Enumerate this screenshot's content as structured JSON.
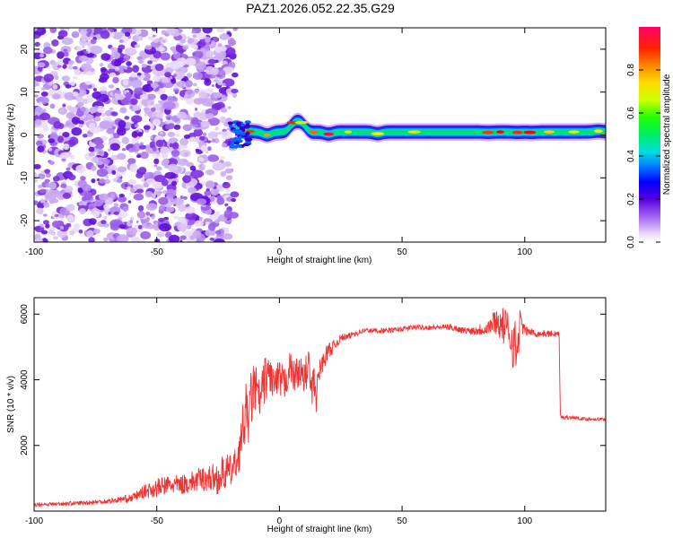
{
  "figure_title": "PAZ1.2026.052.22.35.G29",
  "chart_data": [
    {
      "type": "heatmap",
      "title": "PAZ1.2026.052.22.35.G29",
      "xlabel": "Height of straight line (km)",
      "ylabel": "Frequency (Hz)",
      "xlim": [
        -100,
        133
      ],
      "ylim": [
        -25,
        25
      ],
      "xticks": [
        -100,
        -50,
        0,
        50,
        100
      ],
      "yticks": [
        -20,
        -10,
        0,
        10,
        20
      ],
      "description_values": {
        "noise_region_x": [
          -100,
          -18
        ],
        "signal_center_hz": 0.7,
        "signal_bumps": [
          {
            "x": -17,
            "f": 1.5
          },
          {
            "x": -12,
            "f": 0.8
          },
          {
            "x": -5,
            "f": 0.0
          },
          {
            "x": 6,
            "f": 2.5
          },
          {
            "x": 9,
            "f": 2.5
          },
          {
            "x": 13,
            "f": 0.6
          },
          {
            "x": 20,
            "f": 0.2
          },
          {
            "x": 40,
            "f": 0.3
          },
          {
            "x": 85,
            "f": 0.6
          },
          {
            "x": 97,
            "f": 0.6
          },
          {
            "x": 103,
            "f": 0.6
          },
          {
            "x": 130,
            "f": 0.9
          }
        ]
      },
      "colorbar": {
        "label": "Normalized spectral amplitude",
        "range": [
          0,
          1
        ],
        "ticks": [
          0.0,
          0.2,
          0.4,
          0.6,
          0.8
        ],
        "tick_labels": [
          "0.0",
          "0.2",
          "0.4",
          "0.6",
          "0.8"
        ]
      }
    },
    {
      "type": "line",
      "title": "",
      "xlabel": "Height of straight line (km)",
      "ylabel": "SNR (10 * v/v)",
      "xlim": [
        -100,
        133
      ],
      "ylim": [
        0,
        6500
      ],
      "xticks": [
        -100,
        -50,
        0,
        50,
        100
      ],
      "yticks": [
        2000,
        4000,
        6000
      ],
      "color": "#ee3333",
      "series": [
        {
          "name": "SNR",
          "x": [
            -100,
            -90,
            -80,
            -70,
            -60,
            -55,
            -50,
            -45,
            -40,
            -35,
            -30,
            -25,
            -22,
            -20,
            -18,
            -16,
            -15,
            -14,
            -13,
            -12,
            -11,
            -10,
            -8,
            -6,
            -4,
            -2,
            0,
            2,
            4,
            6,
            8,
            10,
            12,
            13,
            14,
            15,
            16,
            18,
            20,
            22,
            24,
            26,
            28,
            30,
            35,
            40,
            45,
            50,
            55,
            60,
            65,
            70,
            75,
            80,
            85,
            88,
            90,
            92,
            94,
            95,
            96,
            97,
            98,
            100,
            105,
            110,
            113,
            114,
            114.5,
            115,
            120,
            125,
            130,
            133
          ],
          "values": [
            200,
            220,
            250,
            300,
            400,
            600,
            700,
            800,
            800,
            900,
            1000,
            1000,
            1200,
            1200,
            1400,
            1900,
            2500,
            3000,
            2700,
            3200,
            3600,
            3800,
            3300,
            4000,
            4200,
            3800,
            4000,
            3800,
            4400,
            4100,
            4300,
            4000,
            4500,
            3500,
            4000,
            3400,
            4200,
            4600,
            4900,
            5000,
            5200,
            5300,
            5300,
            5400,
            5500,
            5500,
            5500,
            5550,
            5600,
            5600,
            5600,
            5600,
            5500,
            5500,
            5600,
            5800,
            5700,
            5600,
            5400,
            5200,
            5000,
            4800,
            5800,
            5500,
            5400,
            5400,
            5400,
            5400,
            2900,
            2850,
            2850,
            2800,
            2800,
            2800
          ],
          "noise_amplitude": [
            60,
            60,
            70,
            80,
            120,
            200,
            300,
            300,
            300,
            350,
            400,
            500,
            600,
            500,
            500,
            600,
            700,
            1200,
            800,
            900,
            900,
            800,
            700,
            700,
            600,
            600,
            600,
            600,
            500,
            500,
            500,
            500,
            600,
            600,
            500,
            400,
            400,
            300,
            250,
            200,
            150,
            120,
            100,
            100,
            80,
            80,
            80,
            80,
            80,
            80,
            80,
            100,
            100,
            150,
            250,
            400,
            500,
            600,
            700,
            800,
            900,
            700,
            400,
            150,
            100,
            100,
            100,
            100,
            60,
            60,
            50,
            50,
            50,
            50
          ]
        }
      ]
    }
  ]
}
